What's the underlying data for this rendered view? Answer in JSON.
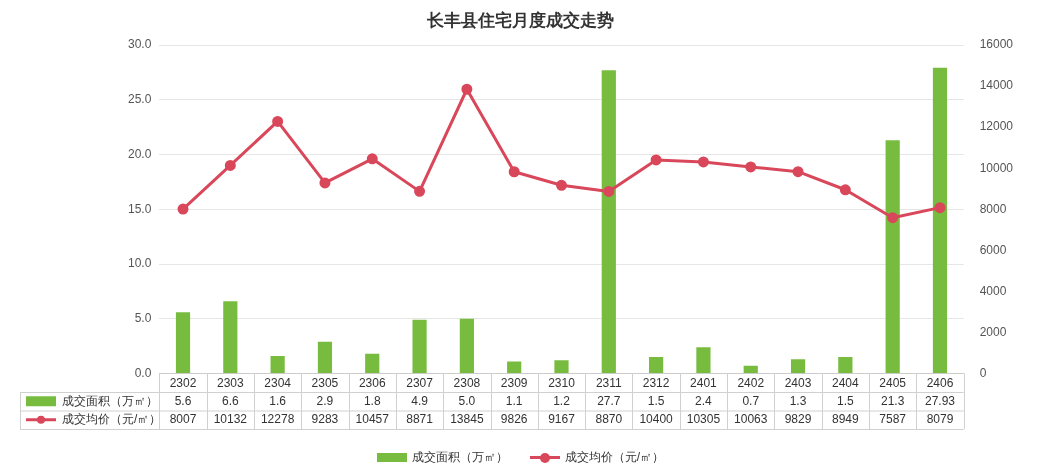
{
  "chart_data": {
    "type": "bar",
    "title": "长丰县住宅月度成交走势",
    "categories": [
      "2302",
      "2303",
      "2304",
      "2305",
      "2306",
      "2307",
      "2308",
      "2309",
      "2310",
      "2311",
      "2312",
      "2401",
      "2402",
      "2403",
      "2404",
      "2405",
      "2406"
    ],
    "series": [
      {
        "name": "成交面积（万㎡）",
        "color": "#77bc3f",
        "values": [
          5.6,
          6.6,
          1.6,
          2.9,
          1.8,
          4.9,
          5.0,
          1.1,
          1.2,
          27.7,
          1.5,
          2.4,
          0.7,
          1.3,
          1.5,
          21.3,
          27.93
        ],
        "value_labels": [
          "5.6",
          "6.6",
          "1.6",
          "2.9",
          "1.8",
          "4.9",
          "5.0",
          "1.1",
          "1.2",
          "27.7",
          "1.5",
          "2.4",
          "0.7",
          "1.3",
          "1.5",
          "21.3",
          "27.93"
        ]
      },
      {
        "name": "成交均价（元/㎡）",
        "type": "line",
        "axis": "y2",
        "color": "#d9475a",
        "values": [
          8007,
          10132,
          12278,
          9283,
          10457,
          8871,
          13845,
          9826,
          9167,
          8870,
          10400,
          10305,
          10063,
          9829,
          8949,
          7587,
          8079
        ]
      }
    ],
    "ylim": [
      0,
      30
    ],
    "yticks": [
      {
        "value": 0,
        "label": "0.0"
      },
      {
        "value": 5,
        "label": "5.0"
      },
      {
        "value": 10,
        "label": "10.0"
      },
      {
        "value": 15,
        "label": "15.0"
      },
      {
        "value": 20,
        "label": "20.0"
      },
      {
        "value": 25,
        "label": "25.0"
      },
      {
        "value": 30,
        "label": "30.0"
      }
    ],
    "y2lim": [
      0,
      16000
    ],
    "y2ticks": [
      0,
      2000,
      4000,
      6000,
      8000,
      10000,
      12000,
      14000,
      16000
    ],
    "data_labels": true,
    "grid": "y",
    "legend": "bottom",
    "marker": "circle",
    "line_style": "solid"
  }
}
